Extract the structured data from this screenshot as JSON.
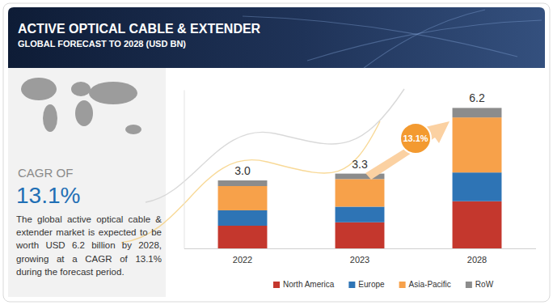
{
  "chart_data": {
    "type": "bar",
    "title": "ACTIVE OPTICAL CABLE & EXTENDER",
    "subtitle": "GLOBAL FORECAST TO 2028 (USD BN)",
    "categories": [
      "2022",
      "2023",
      "2028"
    ],
    "series": [
      {
        "name": "North America",
        "color": "#c4372d",
        "values": [
          1.0,
          1.15,
          2.08
        ]
      },
      {
        "name": "Europe",
        "color": "#2e74b5",
        "values": [
          0.68,
          0.69,
          1.27
        ]
      },
      {
        "name": "Asia-Pacific",
        "color": "#f7a14a",
        "values": [
          1.07,
          1.22,
          2.43
        ]
      },
      {
        "name": "RoW",
        "color": "#8c8c8c",
        "values": [
          0.25,
          0.24,
          0.42
        ]
      }
    ],
    "stacked": true,
    "totals": [
      3.0,
      3.3,
      6.2
    ],
    "total_labels": [
      "3.0",
      "3.3",
      "6.2"
    ],
    "ylim": [
      0,
      7
    ],
    "yticks": [],
    "tick_labels": "x",
    "grid": false,
    "legend": "bottom",
    "annotations": {
      "cagr_label": "CAGR OF",
      "cagr_value": "13.1%",
      "growth_bubble": "13.1%",
      "description": "The global active optical cable & extender market is expected to be worth USD 6.2 billion by 2028, growing at a CAGR of 13.1% during the forecast period."
    }
  }
}
